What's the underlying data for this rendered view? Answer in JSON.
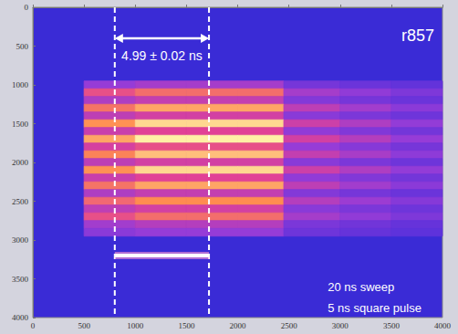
{
  "chart_data": {
    "type": "heatmap",
    "xlim": [
      0,
      4000
    ],
    "xticks": [
      0,
      500,
      1000,
      1500,
      2000,
      2500,
      3000,
      3500,
      4000
    ],
    "ylim": [
      4000,
      0
    ],
    "yticks": [
      0,
      500,
      1000,
      1500,
      2000,
      2500,
      3000,
      3500,
      4000
    ],
    "grid": false,
    "x_edges": [
      500,
      1000,
      1500,
      2000,
      2450,
      3000,
      3500,
      4000
    ],
    "y_edges": [
      950,
      1050,
      1150,
      1250,
      1350,
      1450,
      1550,
      1650,
      1750,
      1850,
      1950,
      2050,
      2150,
      2250,
      2350,
      2450,
      2550,
      2650,
      2750,
      2850,
      2950
    ],
    "cells": [
      [
        0.3,
        0.35,
        0.35,
        0.35,
        0.18,
        0.14,
        0.11
      ],
      [
        0.6,
        0.7,
        0.7,
        0.7,
        0.35,
        0.28,
        0.21
      ],
      [
        0.38,
        0.45,
        0.45,
        0.45,
        0.23,
        0.18,
        0.14
      ],
      [
        0.72,
        0.85,
        0.85,
        0.85,
        0.43,
        0.34,
        0.26
      ],
      [
        0.43,
        0.5,
        0.5,
        0.5,
        0.25,
        0.2,
        0.15
      ],
      [
        0.81,
        0.95,
        0.95,
        0.95,
        0.48,
        0.38,
        0.29
      ],
      [
        0.47,
        0.55,
        0.55,
        0.55,
        0.28,
        0.22,
        0.17
      ],
      [
        0.85,
        1.0,
        1.0,
        1.0,
        0.5,
        0.4,
        0.3
      ],
      [
        0.51,
        0.6,
        0.6,
        0.6,
        0.3,
        0.24,
        0.18
      ],
      [
        0.77,
        0.9,
        0.9,
        0.9,
        0.45,
        0.36,
        0.27
      ],
      [
        0.43,
        0.5,
        0.5,
        0.5,
        0.25,
        0.2,
        0.15
      ],
      [
        0.81,
        0.95,
        0.95,
        0.95,
        0.48,
        0.38,
        0.29
      ],
      [
        0.47,
        0.55,
        0.55,
        0.55,
        0.28,
        0.22,
        0.17
      ],
      [
        0.72,
        0.85,
        0.85,
        0.85,
        0.43,
        0.34,
        0.26
      ],
      [
        0.38,
        0.45,
        0.45,
        0.45,
        0.23,
        0.18,
        0.14
      ],
      [
        0.68,
        0.8,
        0.8,
        0.8,
        0.4,
        0.32,
        0.24
      ],
      [
        0.43,
        0.5,
        0.5,
        0.5,
        0.25,
        0.2,
        0.15
      ],
      [
        0.6,
        0.7,
        0.7,
        0.7,
        0.35,
        0.28,
        0.21
      ],
      [
        0.34,
        0.4,
        0.4,
        0.4,
        0.2,
        0.16,
        0.12
      ],
      [
        0.26,
        0.3,
        0.3,
        0.3,
        0.15,
        0.12,
        0.09
      ]
    ],
    "dashed_lines_x": [
      800,
      1720
    ],
    "arrow": {
      "x": [
        800,
        1720
      ],
      "y": 400
    },
    "pulse_bar": {
      "x": [
        800,
        1720
      ],
      "y": 3200
    },
    "annotations": [
      "4.99 ± 0.02 ns",
      "r857",
      "20 ns sweep",
      "5 ns square pulse"
    ]
  }
}
